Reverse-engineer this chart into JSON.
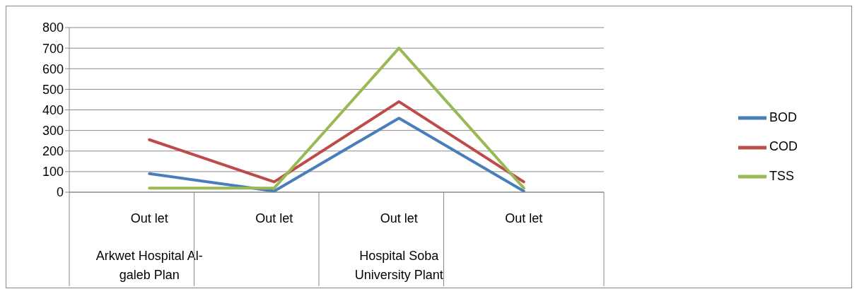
{
  "chart_data": {
    "type": "line",
    "categories": [
      "Out let\nArkwet Hospital Al-galeb Plan",
      "Out let",
      "Out let\nHospital Soba University Plant",
      "Out let"
    ],
    "series": [
      {
        "name": "BOD",
        "color": "#4a7ebb",
        "values": [
          90,
          5,
          360,
          5
        ]
      },
      {
        "name": "COD",
        "color": "#be4b48",
        "values": [
          255,
          50,
          440,
          50
        ]
      },
      {
        "name": "TSS",
        "color": "#98b954",
        "values": [
          20,
          20,
          700,
          20
        ]
      }
    ],
    "ylim": [
      0,
      800
    ],
    "yticks": [
      0,
      100,
      200,
      300,
      400,
      500,
      600,
      700,
      800
    ],
    "grid": "y",
    "legend": "right",
    "marker": "none",
    "line_style": "solid"
  }
}
